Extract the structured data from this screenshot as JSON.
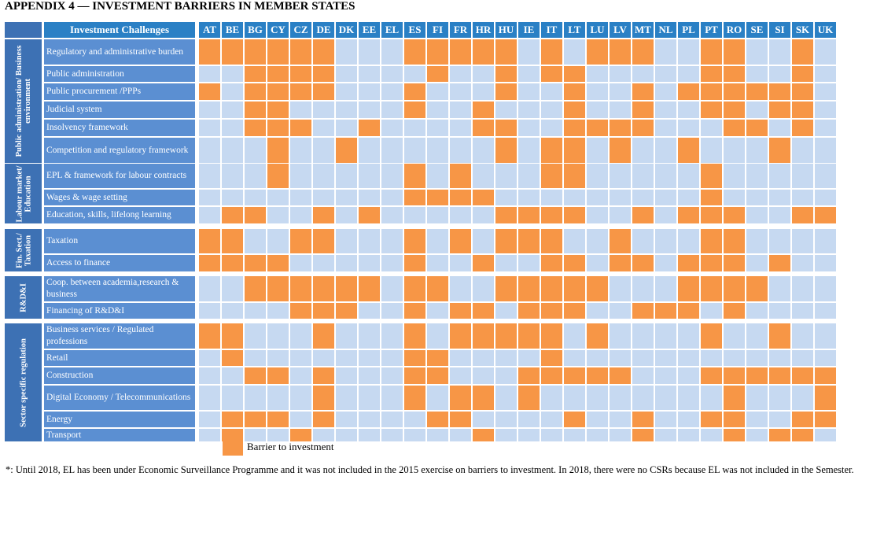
{
  "title": {
    "prefix": "APPENDIX 4 — I",
    "w1": "NVESTMENT BARRIERS IN ",
    "w2": "M",
    "w3": "EMBER ",
    "w4": "S",
    "w5": "TATES"
  },
  "header_title": "Investment Challenges",
  "countries": [
    "AT",
    "BE",
    "BG",
    "CY",
    "CZ",
    "DE",
    "DK",
    "EE",
    "EL",
    "ES",
    "FI",
    "FR",
    "HR",
    "HU",
    "IE",
    "IT",
    "LT",
    "LU",
    "LV",
    "MT",
    "NL",
    "PL",
    "PT",
    "RO",
    "SE",
    "SI",
    "SK",
    "UK"
  ],
  "groups": [
    {
      "label": "Public administration/ Business environment",
      "rows": [
        {
          "label": "Regulatory and administrative burden",
          "cells": "1111110001111101011100110010"
        },
        {
          "label": "Public administration",
          "cells": "0011110000100101100000110010"
        },
        {
          "label": "Public procurement /PPPs",
          "cells": "1011110001000100100101111110"
        },
        {
          "label": "Judicial system",
          "cells": "0011000001001000100100110110"
        },
        {
          "label": "Insolvency framework",
          "cells": "0011100100001100111100011010"
        },
        {
          "label": "Competition and regulatory framework",
          "cells": "0001001000000101101001000100"
        }
      ]
    },
    {
      "label": "Labour market/ Education",
      "rows": [
        {
          "label": "EPL & framework for labour contracts",
          "cells": "0001000001010001100000100000"
        },
        {
          "label": "Wages & wage setting",
          "cells": "0000000001111000000000100000"
        },
        {
          "label": "Education, skills, lifelong learning",
          "cells": "0110010100000111100101110011"
        }
      ]
    },
    {
      "label": "Fin. Sect./ Taxation",
      "rows": [
        {
          "label": "Taxation",
          "cells": "1100110001010111001000110000"
        },
        {
          "label": "Access to finance",
          "cells": "1111000001001001101101110100"
        }
      ]
    },
    {
      "label": "R&D&I",
      "rows": [
        {
          "label": "Coop. between academia,research & business",
          "cells": "0011111101100111110001111000"
        },
        {
          "label": "Financing of R&D&I",
          "cells": "0000111001011011100111010000"
        }
      ]
    },
    {
      "label": "Sector specific regulation",
      "rows": [
        {
          "label": "Business services / Regulated professions",
          "cells": "1100010001011111010000100100"
        },
        {
          "label": "Retail",
          "cells": "0100000001100001000000000000"
        },
        {
          "label": "Construction",
          "cells": "0011010001100011111000111111"
        },
        {
          "label": "Digital Economy / Telecommunications",
          "cells": "0000010001011010000000010001"
        },
        {
          "label": "Energy",
          "cells": "0111010000110000100100110011"
        },
        {
          "label": "Transport",
          "cells": "0100100000001000000100010110"
        }
      ]
    }
  ],
  "legend": {
    "label": "Barrier to investment",
    "on_color": "#f79646",
    "off_color": "#c6d9f1"
  },
  "footnote": "*: Until 2018, EL has been under Economic Surveillance Programme and it was not included in the 2015 exercise on barriers to investment. In 2018, there were no CSRs because EL was not included in the Semester."
}
